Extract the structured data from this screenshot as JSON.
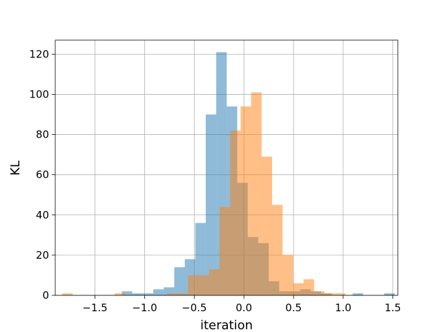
{
  "chart_data": {
    "type": "histogram",
    "xlabel": "iteration",
    "ylabel": "KL",
    "xlim": [
      -1.9,
      1.55
    ],
    "ylim": [
      0,
      127
    ],
    "grid": true,
    "x_ticks": [
      {
        "value": -1.5,
        "label": "−1.5"
      },
      {
        "value": -1.0,
        "label": "−1.0"
      },
      {
        "value": -0.5,
        "label": "−0.5"
      },
      {
        "value": 0.0,
        "label": "0.0"
      },
      {
        "value": 0.5,
        "label": "0.5"
      },
      {
        "value": 1.0,
        "label": "1.0"
      },
      {
        "value": 1.5,
        "label": "1.5"
      }
    ],
    "y_ticks": [
      {
        "value": 0,
        "label": "0"
      },
      {
        "value": 20,
        "label": "20"
      },
      {
        "value": 40,
        "label": "40"
      },
      {
        "value": 60,
        "label": "60"
      },
      {
        "value": 80,
        "label": "80"
      },
      {
        "value": 100,
        "label": "100"
      },
      {
        "value": 120,
        "label": "120"
      }
    ],
    "series": [
      {
        "color": "#1f77b4",
        "opacity": 0.5,
        "bin_start": -1.23,
        "bin_width": 0.1057,
        "counts": [
          2,
          1,
          1,
          3,
          4,
          14,
          18,
          36,
          90,
          121,
          94,
          56,
          29,
          26,
          7,
          2,
          2,
          3,
          2,
          1,
          0,
          0,
          1,
          0,
          0,
          1
        ]
      },
      {
        "color": "#ff7f0e",
        "opacity": 0.5,
        "bin_start": -1.83,
        "bin_width": 0.1057,
        "counts": [
          1,
          0,
          0,
          0,
          0,
          1,
          0,
          0,
          0,
          0,
          1,
          1,
          10,
          10,
          13,
          44,
          82,
          94,
          101,
          69,
          45,
          20,
          6,
          8,
          2,
          1,
          1
        ]
      }
    ]
  }
}
